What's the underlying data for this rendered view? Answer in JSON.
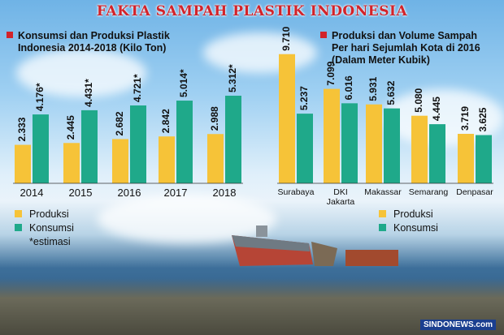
{
  "title": "FAKTA SAMPAH PLASTIK INDONESIA",
  "left": {
    "subtitle_line1": "Konsumsi dan Produksi Plastik",
    "subtitle_line2": "Indonesia 2014-2018 (Kilo Ton)",
    "legend_produksi": "Produksi",
    "legend_konsumsi": "Konsumsi",
    "legend_note": "*estimasi"
  },
  "right": {
    "subtitle_line1": "Produksi dan Volume Sampah",
    "subtitle_line2": "Per hari Sejumlah Kota di 2016",
    "subtitle_line3": "(Dalam Meter Kubik)",
    "legend_produksi": "Produksi",
    "legend_konsumsi": "Konsumsi"
  },
  "brand": "SINDONEWS.com",
  "colors": {
    "produksi": "#f6c338",
    "konsumsi": "#1fa98a",
    "accent": "#d2232a"
  },
  "chart_data": [
    {
      "type": "bar",
      "categories": [
        "2014",
        "2015",
        "2016",
        "2017",
        "2018"
      ],
      "series": [
        {
          "name": "Produksi",
          "values": [
            2.333,
            2.445,
            2.682,
            2.842,
            2.988
          ],
          "labels": [
            "2.333",
            "2.445",
            "2.682",
            "2.842",
            "2.988"
          ]
        },
        {
          "name": "Konsumsi",
          "values": [
            4.176,
            4.431,
            4.721,
            5.014,
            5.312
          ],
          "labels": [
            "4.176*",
            "4.431*",
            "4.721*",
            "5.014*",
            "5.312*"
          ]
        }
      ],
      "ylim": [
        0,
        6
      ]
    },
    {
      "type": "bar",
      "categories": [
        "Surabaya",
        "DKI Jakarta",
        "Makassar",
        "Semarang",
        "Denpasar"
      ],
      "series": [
        {
          "name": "Produksi",
          "values": [
            9.71,
            7.099,
            5.931,
            5.08,
            3.719
          ],
          "labels": [
            "9.710",
            "7.099",
            "5.931",
            "5.080",
            "3.719"
          ]
        },
        {
          "name": "Konsumsi",
          "values": [
            5.237,
            6.016,
            5.632,
            4.445,
            3.625
          ],
          "labels": [
            "5.237",
            "6.016",
            "5.632",
            "4.445",
            "3.625"
          ]
        }
      ],
      "ylim": [
        0,
        10
      ]
    }
  ]
}
